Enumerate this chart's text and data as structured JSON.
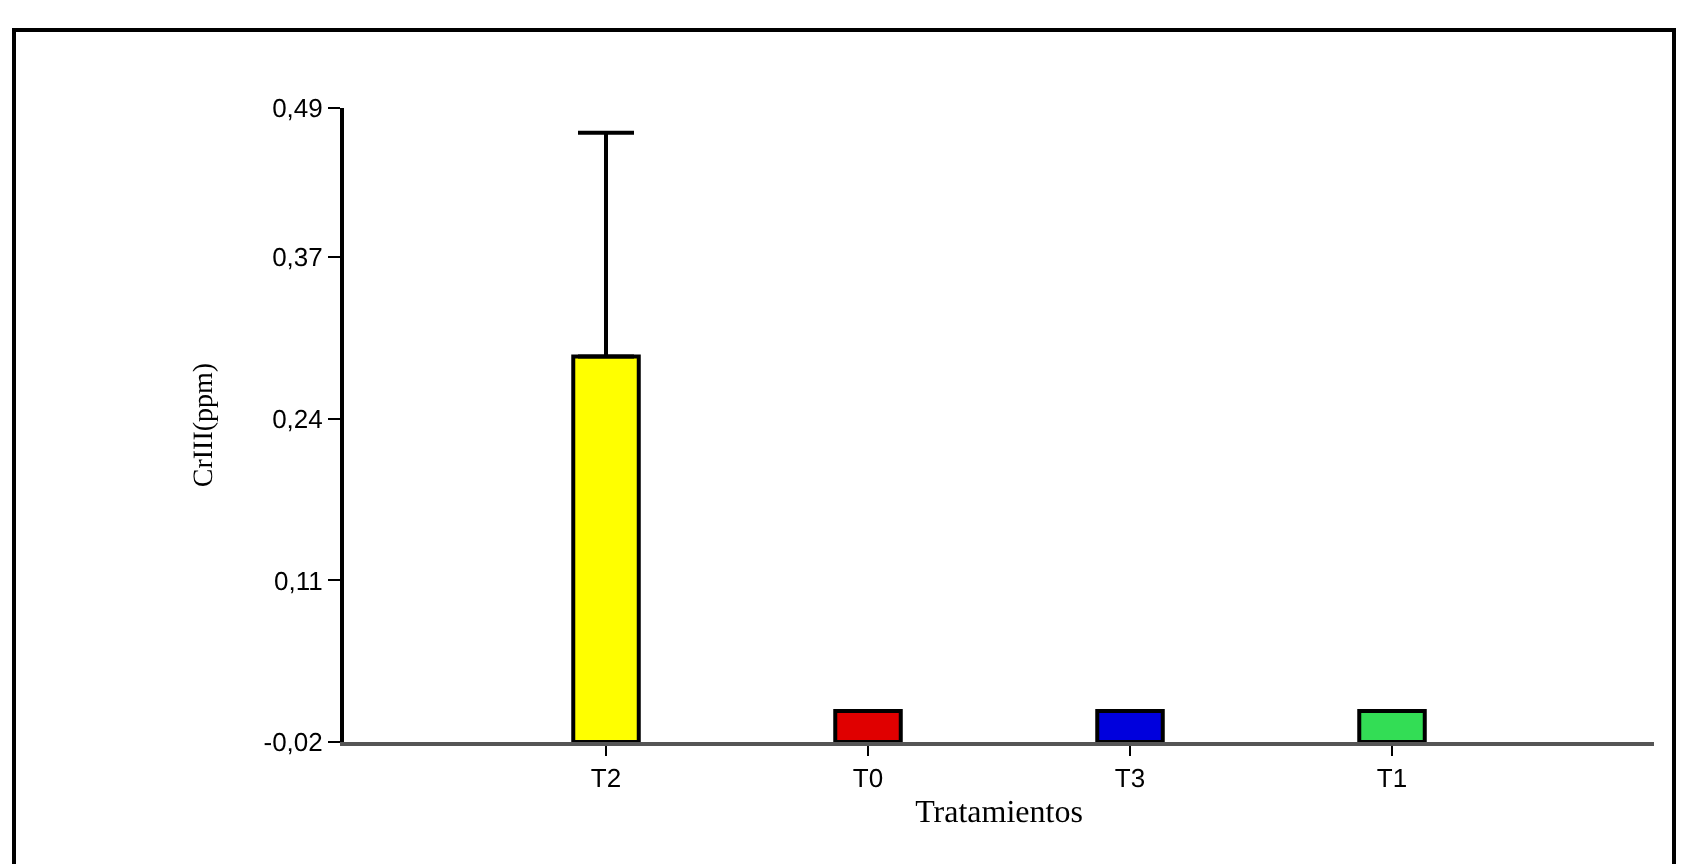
{
  "chart_data": {
    "type": "bar",
    "xlabel": "Tratamientos",
    "ylabel": "CrIII(ppm)",
    "categories": [
      "T2",
      "T0",
      "T3",
      "T1"
    ],
    "base": [
      -0.02,
      -0.02,
      -0.02,
      -0.02
    ],
    "values": [
      0.31,
      0.025,
      0.025,
      0.025
    ],
    "colors": [
      "#ffff00",
      "#e00000",
      "#0000dd",
      "#33dd55"
    ],
    "errors": [
      [
        0.29,
        0.47
      ],
      null,
      null,
      null
    ],
    "ylim": [
      -0.02,
      0.49
    ],
    "yticks": [
      {
        "value": -0.02,
        "label": "-0,02"
      },
      {
        "value": 0.11,
        "label": "0,11"
      },
      {
        "value": 0.24,
        "label": "0,24"
      },
      {
        "value": 0.37,
        "label": "0,37"
      },
      {
        "value": 0.49,
        "label": "0,49"
      }
    ],
    "grid": false
  }
}
